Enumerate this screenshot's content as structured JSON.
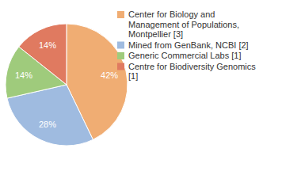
{
  "chart_data": {
    "type": "pie",
    "categories": [
      "Center for Biology and Management of Populations, Montpellier [3]",
      "Mined from GenBank, NCBI [2]",
      "Generic Commercial Labs [1]",
      "Centre for Biodiversity Genomics [1]"
    ],
    "values": [
      42,
      28,
      14,
      14
    ],
    "value_labels": [
      "42%",
      "28%",
      "14%",
      "14%"
    ],
    "colors": [
      "#f0ad73",
      "#9fbbe0",
      "#9fcb7c",
      "#e07a60"
    ],
    "data_labels": true,
    "legend": "top-right"
  }
}
